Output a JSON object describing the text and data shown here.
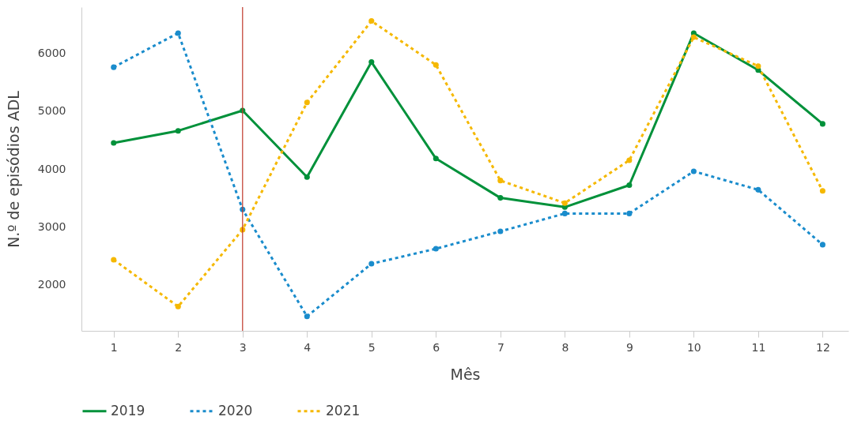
{
  "chart_data": {
    "type": "line",
    "xlabel": "Mês",
    "ylabel": "N.º de episódios ADL",
    "x": [
      1,
      2,
      3,
      4,
      5,
      6,
      7,
      8,
      9,
      10,
      11,
      12
    ],
    "xlim": [
      0.5,
      12.4
    ],
    "xticks": [
      1,
      2,
      3,
      4,
      5,
      6,
      7,
      8,
      9,
      10,
      11,
      12
    ],
    "ylim": [
      1200,
      6800
    ],
    "yticks": [
      2000,
      3000,
      4000,
      5000,
      6000
    ],
    "grid": false,
    "legend": "bottom left",
    "marker": "circle",
    "ref_lines": [
      {
        "axis": "x",
        "value": 3,
        "color": "#c0392b"
      }
    ],
    "series": [
      {
        "name": "2019",
        "color": "#00913a",
        "line_style": "solid",
        "values": [
          4450,
          4660,
          5010,
          3860,
          5850,
          4180,
          3500,
          3340,
          3720,
          6350,
          5710,
          4780
        ]
      },
      {
        "name": "2020",
        "color": "#1a8ccc",
        "line_style": "dotted",
        "values": [
          5760,
          6350,
          3300,
          1450,
          2360,
          2620,
          2920,
          3230,
          3230,
          3960,
          3640,
          2690
        ]
      },
      {
        "name": "2021",
        "color": "#f5b800",
        "line_style": "dotted",
        "values": [
          2430,
          1620,
          2950,
          5150,
          6560,
          5800,
          3800,
          3410,
          4150,
          6280,
          5780,
          3620
        ]
      }
    ]
  }
}
